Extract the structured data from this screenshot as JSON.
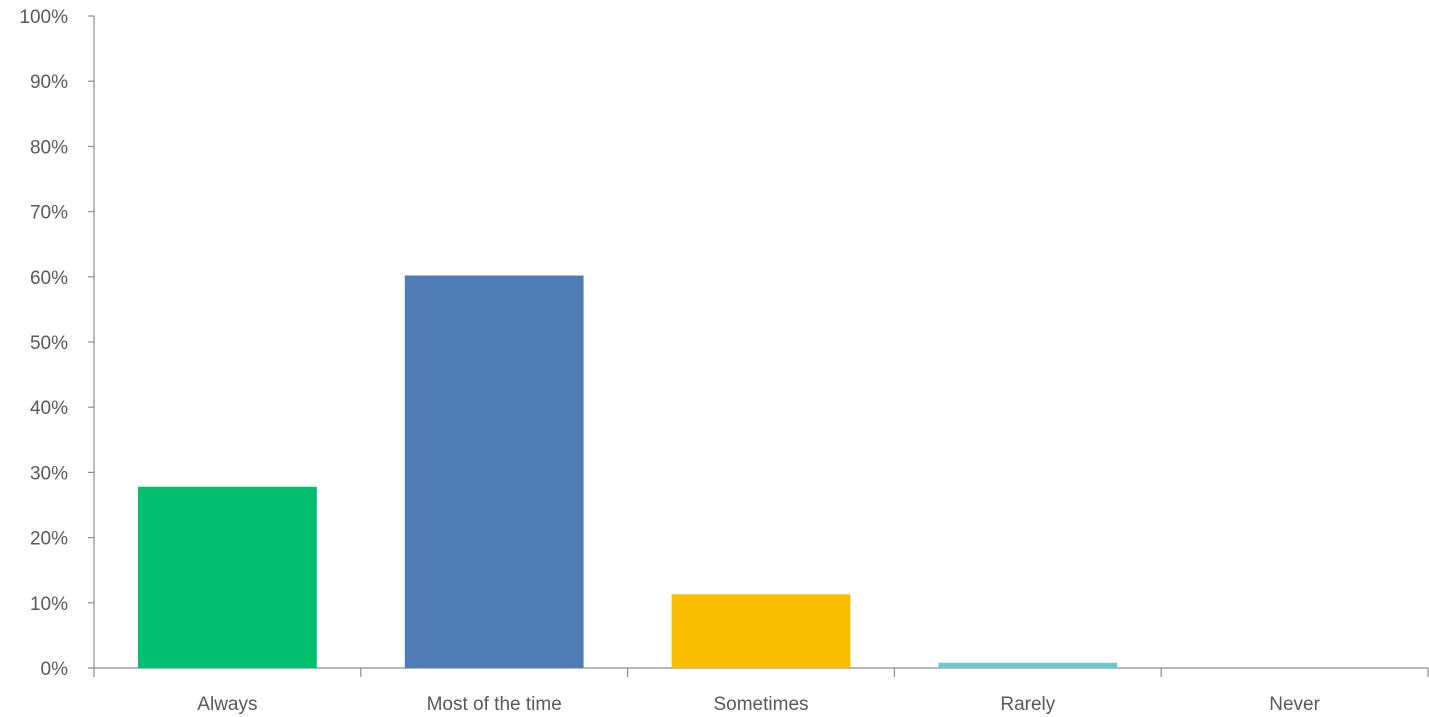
{
  "chart_data": {
    "type": "bar",
    "title": "",
    "xlabel": "",
    "ylabel": "",
    "categories": [
      "Always",
      "Most of the time",
      "Sometimes",
      "Rarely",
      "Never"
    ],
    "values": [
      27.8,
      60.2,
      11.3,
      0.8,
      0
    ],
    "colors": [
      "#00bf6f",
      "#507cb6",
      "#f9be00",
      "#6bc8cd",
      "#ff8b4f"
    ],
    "ylim": [
      0,
      100
    ],
    "yticks": [
      0,
      10,
      20,
      30,
      40,
      50,
      60,
      70,
      80,
      90,
      100
    ],
    "ytick_labels": [
      "0%",
      "10%",
      "20%",
      "30%",
      "40%",
      "50%",
      "60%",
      "70%",
      "80%",
      "90%",
      "100%"
    ],
    "grid": false,
    "legend": "none"
  }
}
